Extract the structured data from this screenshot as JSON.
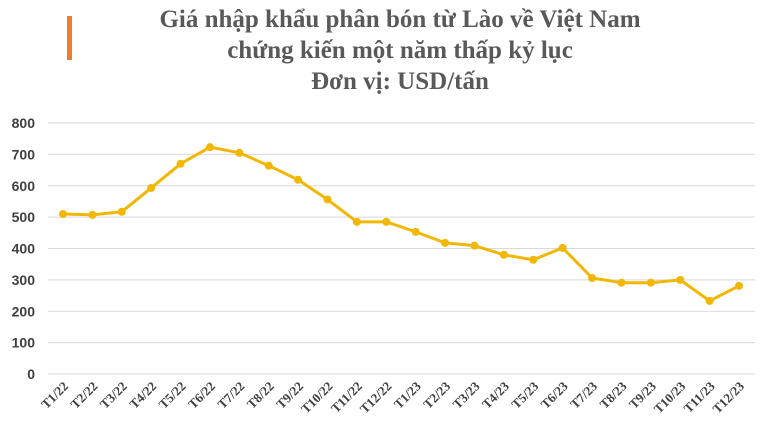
{
  "chart_data": {
    "type": "line",
    "title_lines": [
      "Giá nhập khẩu phân bón từ Lào về Việt Nam",
      "chứng kiến một năm thấp kỷ lục",
      "Đơn vị: USD/tấn"
    ],
    "categories": [
      "T1/22",
      "T2/22",
      "T3/22",
      "T4/22",
      "T5/22",
      "T6/22",
      "T7/22",
      "T8/22",
      "T9/22",
      "T10/22",
      "T11/22",
      "T12/22",
      "T1/23",
      "T2/23",
      "T3/23",
      "T4/23",
      "T5/23",
      "T6/23",
      "T7/23",
      "T8/23",
      "T9/23",
      "T10/23",
      "T11/23",
      "T12/23"
    ],
    "series": [
      {
        "values": [
          510,
          507,
          517,
          593,
          670,
          723,
          705,
          664,
          619,
          556,
          485,
          485,
          453,
          418,
          409,
          380,
          364,
          402,
          306,
          291,
          291,
          300,
          233,
          281
        ]
      }
    ],
    "ylim": [
      0,
      800
    ],
    "yticks": [
      0,
      100,
      200,
      300,
      400,
      500,
      600,
      700,
      800
    ],
    "grid": true,
    "legend": "none",
    "colors": {
      "line": "#F2B705",
      "accent": "#ED7D31",
      "grid": "#D9D9D9",
      "title": "#595959"
    }
  }
}
